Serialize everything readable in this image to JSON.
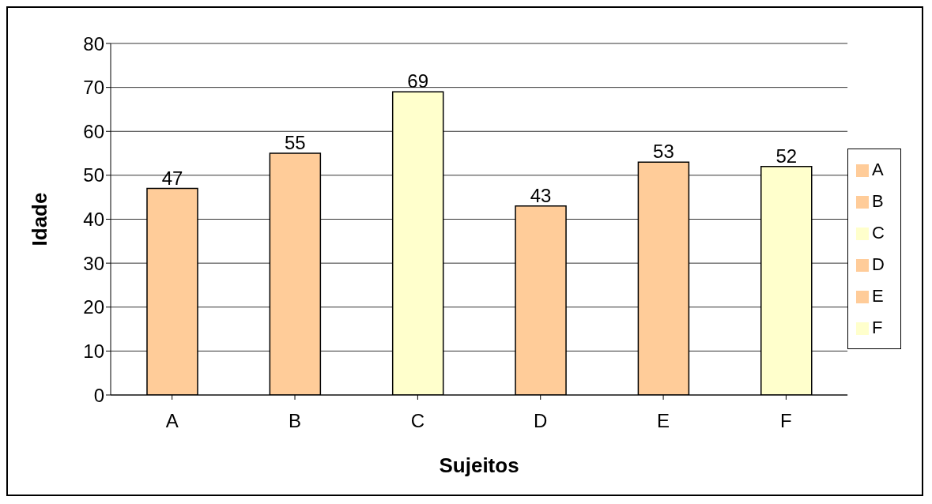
{
  "chart_data": {
    "type": "bar",
    "xlabel": "Sujeitos",
    "ylabel": "Idade",
    "stacked": true,
    "categories": [
      "A",
      "B",
      "C",
      "D",
      "E",
      "F"
    ],
    "series": [
      {
        "name": "A",
        "color": "#ffcc99",
        "values": [
          47,
          null,
          null,
          null,
          null,
          null
        ]
      },
      {
        "name": "B",
        "color": "#ffcc99",
        "values": [
          null,
          55,
          null,
          null,
          null,
          null
        ]
      },
      {
        "name": "C",
        "color": "#ffffcc",
        "values": [
          null,
          null,
          69,
          null,
          null,
          null
        ]
      },
      {
        "name": "D",
        "color": "#ffcc99",
        "values": [
          null,
          null,
          null,
          43,
          null,
          null
        ]
      },
      {
        "name": "E",
        "color": "#ffcc99",
        "values": [
          null,
          null,
          null,
          null,
          53,
          null
        ]
      },
      {
        "name": "F",
        "color": "#ffffcc",
        "values": [
          null,
          null,
          null,
          null,
          null,
          52
        ]
      }
    ],
    "ylim": [
      0,
      80
    ],
    "yticks": [
      0,
      10,
      20,
      30,
      40,
      50,
      60,
      70,
      80
    ],
    "grid": "y",
    "data_labels": true,
    "legend": "right"
  }
}
